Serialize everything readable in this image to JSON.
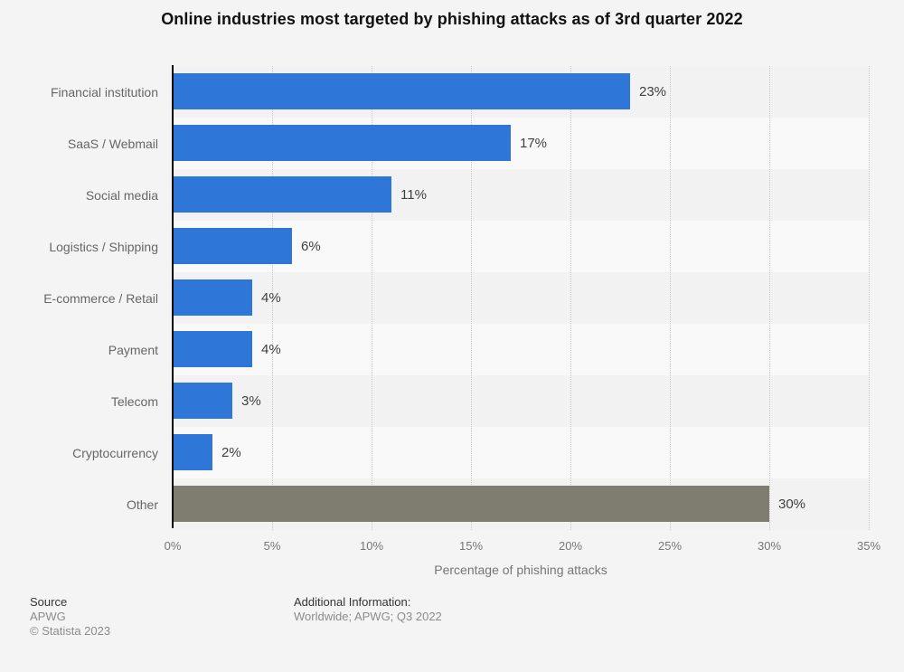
{
  "title": "Online industries most targeted by phishing attacks as of 3rd quarter 2022",
  "chart_data": {
    "type": "bar",
    "orientation": "horizontal",
    "categories": [
      "Financial institution",
      "SaaS / Webmail",
      "Social media",
      "Logistics / Shipping",
      "E-commerce / Retail",
      "Payment",
      "Telecom",
      "Cryptocurrency",
      "Other"
    ],
    "values": [
      23,
      17,
      11,
      6,
      4,
      4,
      3,
      2,
      30
    ],
    "value_labels": [
      "23%",
      "17%",
      "11%",
      "6%",
      "4%",
      "4%",
      "3%",
      "2%",
      "30%"
    ],
    "bar_colors": [
      "#2e77d8",
      "#2e77d8",
      "#2e77d8",
      "#2e77d8",
      "#2e77d8",
      "#2e77d8",
      "#2e77d8",
      "#2e77d8",
      "#7f7c70"
    ],
    "title": "Online industries most targeted by phishing attacks as of 3rd quarter 2022",
    "xlabel": "Percentage of phishing attacks",
    "ylabel": "",
    "xlim": [
      0,
      35
    ],
    "x_ticks": [
      "0%",
      "5%",
      "10%",
      "15%",
      "20%",
      "25%",
      "30%",
      "35%"
    ],
    "x_tick_values": [
      0,
      5,
      10,
      15,
      20,
      25,
      30,
      35
    ],
    "grid": "vertical-dotted",
    "legend": "none"
  },
  "footer": {
    "source_label": "Source",
    "source_value": "APWG",
    "copyright": "© Statista 2023",
    "additional_label": "Additional Information:",
    "additional_value": "Worldwide; APWG; Q3 2022"
  },
  "colors": {
    "page_bg": "#f4f4f4",
    "row_stripe_dark": "#f2f2f2",
    "row_stripe_light": "#f9f9f9",
    "bar_blue": "#2e77d8",
    "bar_gray": "#7f7c70",
    "axis_line": "#000000",
    "gridline": "#c9c9c9",
    "title_text": "#111111",
    "category_text": "#666666",
    "value_text": "#404040",
    "tick_text": "#767676",
    "footer_dark": "#333333",
    "footer_gray": "#8c8c8c"
  }
}
